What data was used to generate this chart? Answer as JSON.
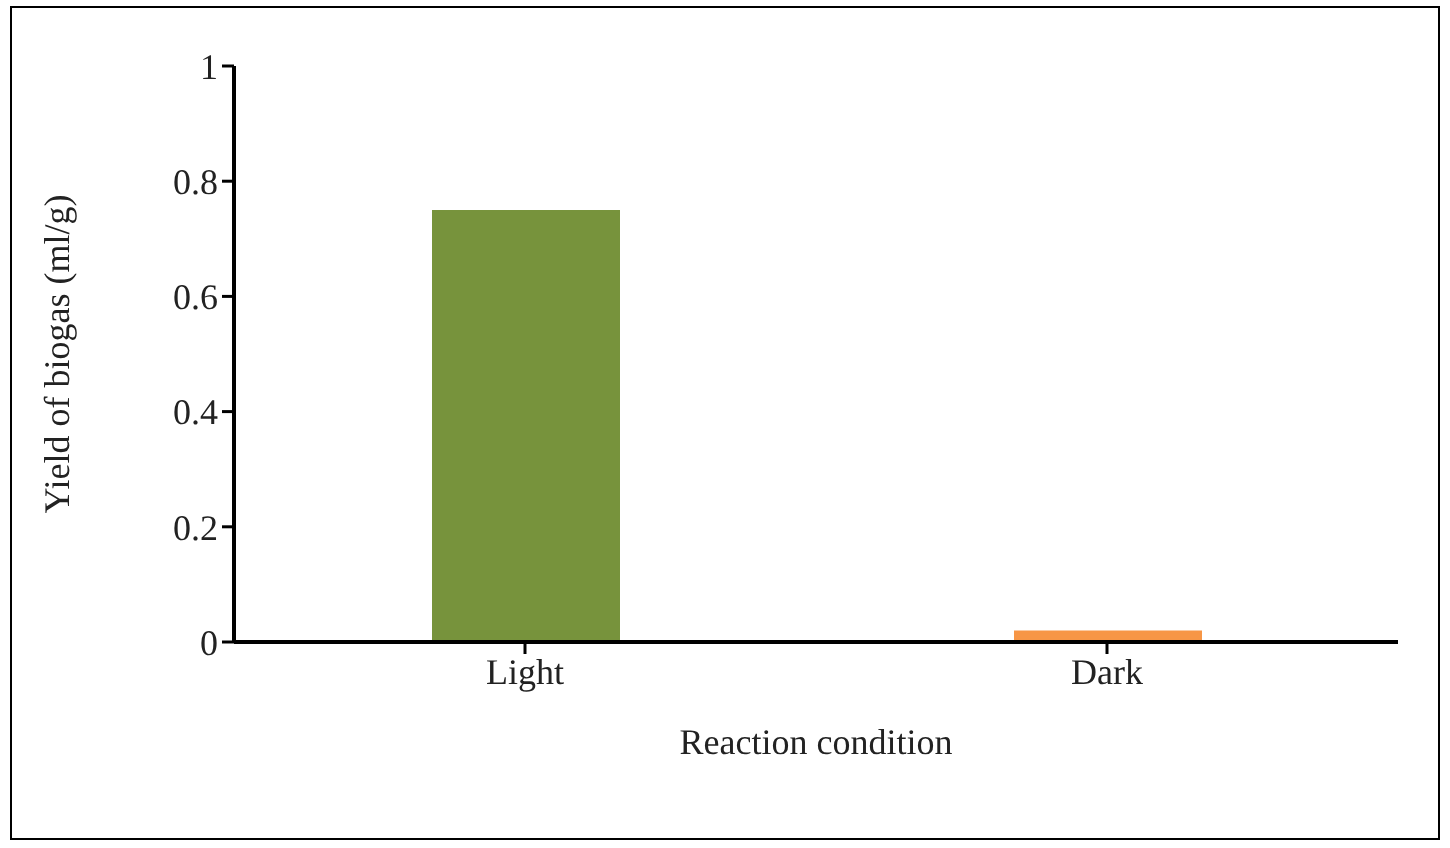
{
  "chart_data": {
    "type": "bar",
    "xlabel": "Reaction condition",
    "ylabel": "Yield of biogas (ml/g)",
    "categories": [
      "Light",
      "Dark"
    ],
    "values": [
      0.75,
      0.02
    ],
    "colors": [
      "#77933c",
      "#f79646"
    ],
    "ylim": [
      0,
      1
    ],
    "yticks": [
      0,
      0.2,
      0.4,
      0.6,
      0.8,
      1
    ],
    "grid": false,
    "legend": false
  }
}
